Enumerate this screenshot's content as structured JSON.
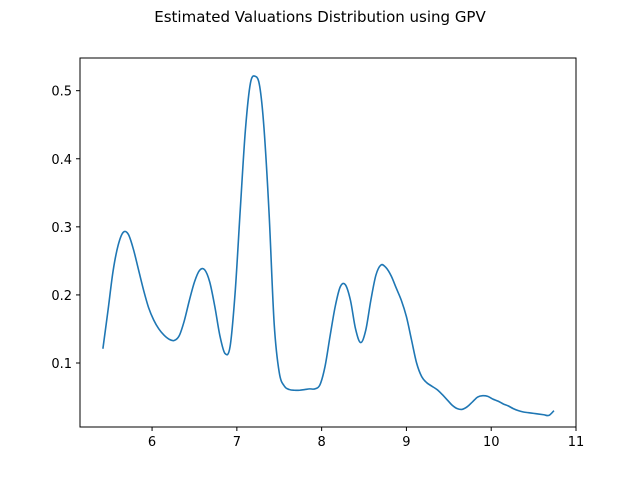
{
  "chart_data": {
    "type": "line",
    "title": "Estimated Valuations Distribution using GPV",
    "xlabel": "",
    "ylabel": "",
    "xlim": [
      5.15,
      11.0
    ],
    "ylim": [
      0.006,
      0.548
    ],
    "x_ticks": [
      6,
      7,
      8,
      9,
      10,
      11
    ],
    "y_ticks": [
      0.1,
      0.2,
      0.3,
      0.4,
      0.5
    ],
    "grid": false,
    "legend": "none",
    "series": [
      {
        "color": "#1f77b4",
        "x": [
          5.42,
          5.48,
          5.54,
          5.6,
          5.66,
          5.72,
          5.78,
          5.84,
          5.9,
          5.96,
          6.02,
          6.08,
          6.14,
          6.2,
          6.26,
          6.32,
          6.38,
          6.44,
          6.5,
          6.56,
          6.62,
          6.68,
          6.74,
          6.8,
          6.86,
          6.92,
          6.98,
          7.04,
          7.1,
          7.16,
          7.22,
          7.27,
          7.32,
          7.38,
          7.44,
          7.5,
          7.56,
          7.62,
          7.68,
          7.74,
          7.8,
          7.86,
          7.92,
          7.98,
          8.04,
          8.1,
          8.16,
          8.22,
          8.28,
          8.34,
          8.4,
          8.46,
          8.52,
          8.58,
          8.64,
          8.7,
          8.76,
          8.82,
          8.88,
          8.94,
          9.0,
          9.06,
          9.12,
          9.18,
          9.24,
          9.3,
          9.36,
          9.42,
          9.48,
          9.54,
          9.6,
          9.66,
          9.72,
          9.78,
          9.84,
          9.9,
          9.96,
          10.02,
          10.08,
          10.14,
          10.2,
          10.26,
          10.32,
          10.38,
          10.44,
          10.5,
          10.56,
          10.62,
          10.68,
          10.74
        ],
        "y": [
          0.121,
          0.177,
          0.235,
          0.273,
          0.292,
          0.289,
          0.267,
          0.237,
          0.207,
          0.181,
          0.163,
          0.15,
          0.141,
          0.135,
          0.133,
          0.14,
          0.162,
          0.192,
          0.219,
          0.236,
          0.237,
          0.219,
          0.183,
          0.14,
          0.114,
          0.124,
          0.204,
          0.325,
          0.441,
          0.511,
          0.521,
          0.506,
          0.445,
          0.32,
          0.158,
          0.086,
          0.066,
          0.061,
          0.06,
          0.06,
          0.061,
          0.062,
          0.062,
          0.068,
          0.095,
          0.14,
          0.183,
          0.212,
          0.215,
          0.192,
          0.15,
          0.13,
          0.148,
          0.192,
          0.229,
          0.244,
          0.24,
          0.228,
          0.21,
          0.192,
          0.168,
          0.134,
          0.1,
          0.08,
          0.071,
          0.066,
          0.061,
          0.054,
          0.046,
          0.038,
          0.033,
          0.032,
          0.036,
          0.043,
          0.05,
          0.052,
          0.051,
          0.047,
          0.044,
          0.04,
          0.037,
          0.033,
          0.03,
          0.028,
          0.027,
          0.026,
          0.025,
          0.024,
          0.023,
          0.03
        ]
      }
    ]
  }
}
